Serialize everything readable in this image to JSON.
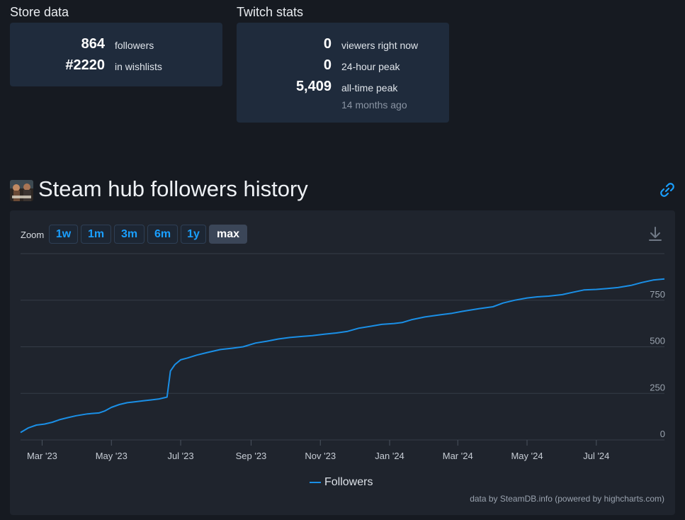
{
  "store": {
    "title": "Store data",
    "rows": [
      {
        "value": "864",
        "label": "followers"
      },
      {
        "value": "#2220",
        "label": "in wishlists"
      }
    ]
  },
  "twitch": {
    "title": "Twitch stats",
    "rows": [
      {
        "value": "0",
        "label": "viewers right now"
      },
      {
        "value": "0",
        "label": "24-hour peak"
      },
      {
        "value": "5,409",
        "label": "all-time peak"
      }
    ],
    "sub": "14 months ago"
  },
  "hub": {
    "title": "Steam hub followers history",
    "icon": "game-thumbnail-icon",
    "link_icon": "link-icon"
  },
  "zoom": {
    "label": "Zoom",
    "buttons": [
      "1w",
      "1m",
      "3m",
      "6m",
      "1y",
      "max"
    ],
    "active": "max"
  },
  "download_icon": "download-icon",
  "credits": "data by SteamDB.info (powered by highcharts.com)",
  "colors": {
    "accent": "#1a9fff",
    "line": "#1a8fe6",
    "card": "#1f2b3c",
    "panel": "#1f242d",
    "background": "#161a21"
  },
  "chart_data": {
    "type": "line",
    "title": "",
    "xlabel": "",
    "ylabel": "",
    "ylim": [
      0,
      1000
    ],
    "y_ticks": [
      0,
      250,
      500,
      750
    ],
    "y_tick_labels": [
      "0",
      "250",
      "500",
      "750"
    ],
    "x_tick_labels": [
      "Mar '23",
      "May '23",
      "Jul '23",
      "Sep '23",
      "Nov '23",
      "Jan '24",
      "Mar '24",
      "May '24",
      "Jul '24"
    ],
    "x_tick_dates": [
      "2023-03-01",
      "2023-05-01",
      "2023-07-01",
      "2023-09-01",
      "2023-11-01",
      "2024-01-01",
      "2024-03-01",
      "2024-05-01",
      "2024-07-01"
    ],
    "x_range": [
      "2023-02-10",
      "2024-08-30"
    ],
    "grid": true,
    "legend": "bottom-center",
    "series": [
      {
        "name": "Followers",
        "x": [
          "2023-02-10",
          "2023-02-17",
          "2023-02-24",
          "2023-03-03",
          "2023-03-10",
          "2023-03-17",
          "2023-03-24",
          "2023-03-31",
          "2023-04-10",
          "2023-04-20",
          "2023-04-25",
          "2023-05-01",
          "2023-05-08",
          "2023-05-15",
          "2023-05-22",
          "2023-05-29",
          "2023-06-05",
          "2023-06-12",
          "2023-06-19",
          "2023-06-22",
          "2023-06-26",
          "2023-07-01",
          "2023-07-07",
          "2023-07-15",
          "2023-07-25",
          "2023-08-05",
          "2023-08-15",
          "2023-08-25",
          "2023-09-05",
          "2023-09-15",
          "2023-09-25",
          "2023-10-05",
          "2023-10-15",
          "2023-10-25",
          "2023-11-05",
          "2023-11-15",
          "2023-11-25",
          "2023-12-05",
          "2023-12-15",
          "2023-12-25",
          "2024-01-05",
          "2024-01-12",
          "2024-01-20",
          "2024-02-01",
          "2024-02-15",
          "2024-02-25",
          "2024-03-05",
          "2024-03-20",
          "2024-04-01",
          "2024-04-10",
          "2024-04-20",
          "2024-05-01",
          "2024-05-10",
          "2024-05-20",
          "2024-06-01",
          "2024-06-10",
          "2024-06-20",
          "2024-07-01",
          "2024-07-10",
          "2024-07-20",
          "2024-08-01",
          "2024-08-10",
          "2024-08-20",
          "2024-08-30"
        ],
        "y": [
          40,
          65,
          80,
          85,
          95,
          110,
          120,
          130,
          140,
          145,
          155,
          175,
          190,
          200,
          205,
          210,
          215,
          220,
          230,
          370,
          405,
          430,
          440,
          455,
          470,
          485,
          492,
          500,
          520,
          530,
          542,
          550,
          555,
          560,
          568,
          574,
          583,
          600,
          610,
          620,
          625,
          630,
          645,
          660,
          672,
          680,
          690,
          705,
          715,
          735,
          750,
          762,
          768,
          772,
          780,
          792,
          805,
          808,
          812,
          818,
          830,
          845,
          858,
          864
        ]
      }
    ]
  }
}
